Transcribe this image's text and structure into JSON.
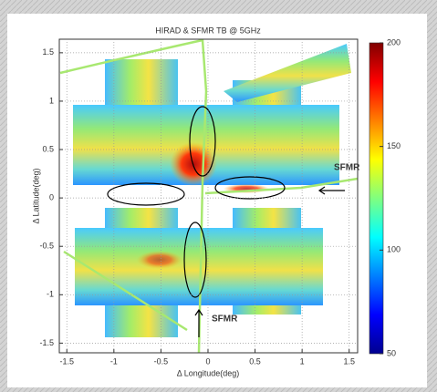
{
  "chart_data": {
    "type": "heatmap",
    "title": "HIRAD & SFMR TB @ 5GHz",
    "x_label": "Δ Longitude(deg)",
    "y_label": "Δ Latitude(deg)",
    "xlim": [
      -1.58,
      1.59
    ],
    "xticks": [
      -1.5,
      -1,
      -0.5,
      0,
      0.5,
      1,
      1.5
    ],
    "ylim": [
      -1.6,
      1.64
    ],
    "yticks": [
      -1.5,
      -1,
      -0.5,
      0,
      0.5,
      1,
      1.5
    ],
    "grid": true,
    "colormap": "jet",
    "clim": [
      50,
      200
    ],
    "cticks": [
      50,
      100,
      150,
      200
    ],
    "annotations": [
      "SFMR",
      "SFMR"
    ]
  }
}
